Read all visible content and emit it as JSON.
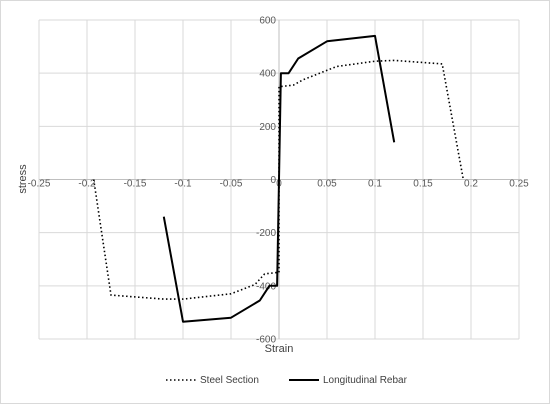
{
  "chart_data": {
    "type": "line",
    "xlabel": "Strain",
    "ylabel": "stress",
    "xlim": [
      -0.25,
      0.25
    ],
    "ylim": [
      -600,
      600
    ],
    "x_ticks": [
      -0.25,
      -0.2,
      -0.15,
      -0.1,
      -0.05,
      0,
      0.05,
      0.1,
      0.15,
      0.2,
      0.25
    ],
    "x_tick_labels": [
      "-0.25",
      "-0.2",
      "-0.15",
      "-0.1",
      "-0.05",
      "0",
      "0.05",
      "0.1",
      "0.15",
      "0.2",
      "0.25"
    ],
    "y_ticks": [
      -600,
      -400,
      -200,
      0,
      200,
      400,
      600
    ],
    "y_tick_labels": [
      "-600",
      "-400",
      "-200",
      "0",
      "200",
      "400",
      "600"
    ],
    "grid": true,
    "legend": "bottom",
    "series": [
      {
        "name": "Steel Section",
        "style": "dotted",
        "color": "#000000",
        "x": [
          -0.193,
          -0.175,
          -0.12,
          -0.1,
          -0.05,
          -0.025,
          -0.015,
          -0.002,
          -0.002,
          0,
          0,
          0.002,
          0.002,
          0.015,
          0.025,
          0.06,
          0.1,
          0.12,
          0.17,
          0.192
        ],
        "y": [
          0,
          -435,
          -450,
          -450,
          -430,
          -395,
          -355,
          -350,
          -350,
          -350,
          350,
          350,
          350,
          355,
          375,
          425,
          445,
          448,
          435,
          0
        ]
      },
      {
        "name": "Longitudinal Rebar",
        "style": "solid",
        "color": "#000000",
        "x": [
          -0.12,
          -0.1,
          -0.05,
          -0.02,
          -0.01,
          -0.002,
          0,
          0.002,
          0.01,
          0.02,
          0.05,
          0.1,
          0.12
        ],
        "y": [
          -140,
          -535,
          -520,
          -455,
          -400,
          -400,
          0,
          400,
          400,
          455,
          520,
          540,
          140
        ]
      }
    ]
  }
}
